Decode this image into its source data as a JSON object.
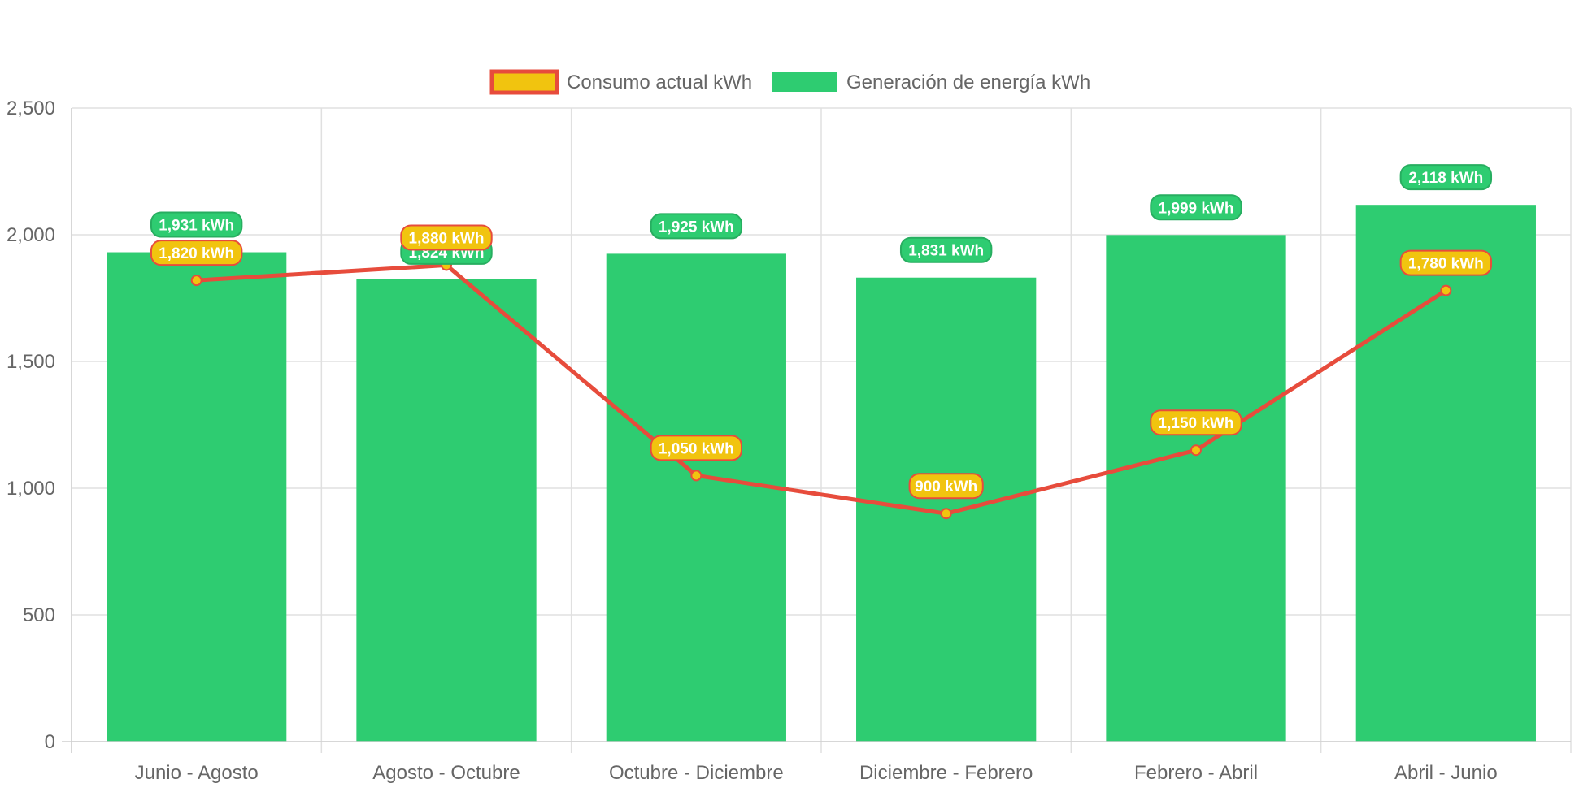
{
  "chart_data": {
    "type": "bar",
    "categories": [
      "Junio - Agosto",
      "Agosto - Octubre",
      "Octubre - Diciembre",
      "Diciembre - Febrero",
      "Febrero - Abril",
      "Abril - Junio"
    ],
    "series": [
      {
        "name": "Consumo actual kWh",
        "type": "line",
        "values": [
          1820,
          1880,
          1050,
          900,
          1150,
          1780
        ],
        "labels": [
          "1,820 kWh",
          "1,880 kWh",
          "1,050 kWh",
          "900 kWh",
          "1,150 kWh",
          "1,780 kWh"
        ],
        "color": "#e74c3c",
        "fill_color": "#f1c40f"
      },
      {
        "name": "Generación de energía kWh",
        "type": "bar",
        "values": [
          1931,
          1824,
          1925,
          1831,
          1999,
          2118
        ],
        "labels": [
          "1,931 kWh",
          "1,824 kWh",
          "1,925 kWh",
          "1,831 kWh",
          "1,999 kWh",
          "2,118 kWh"
        ],
        "color": "#2ecc71"
      }
    ],
    "ylim": [
      0,
      2500
    ],
    "yticks": [
      0,
      500,
      1000,
      1500,
      2000,
      2500
    ],
    "ytick_labels": [
      "0",
      "500",
      "1,000",
      "1,500",
      "2,000",
      "2,500"
    ],
    "grid": true,
    "legend": "top-center",
    "title": "",
    "xlabel": "",
    "ylabel": ""
  }
}
